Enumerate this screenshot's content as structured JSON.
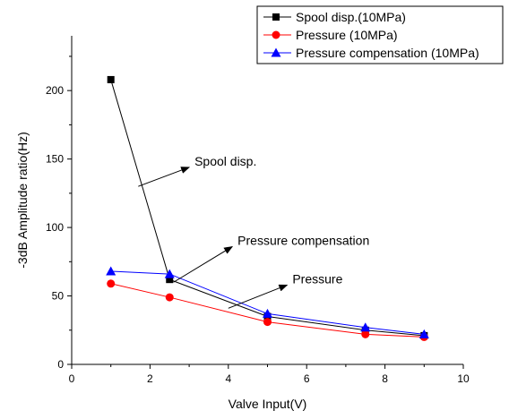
{
  "chart_data": {
    "type": "line",
    "title": "",
    "xlabel": "Valve Input(V)",
    "ylabel": "-3dB Amplitude ratio(Hz)",
    "xlim": [
      0,
      10
    ],
    "ylim": [
      0,
      240
    ],
    "x_ticks": [
      0,
      2,
      4,
      6,
      8,
      10
    ],
    "y_ticks": [
      0,
      50,
      100,
      150,
      200
    ],
    "grid": false,
    "legend_position": "top-right",
    "series": [
      {
        "name": "Spool disp.(10MPa)",
        "color": "#000000",
        "marker": "square",
        "x": [
          1,
          2.5,
          5,
          7.5,
          9
        ],
        "y": [
          208,
          62,
          35,
          25,
          21
        ]
      },
      {
        "name": "Pressure (10MPa)",
        "color": "#ff0000",
        "marker": "circle",
        "x": [
          1,
          2.5,
          5,
          7.5,
          9
        ],
        "y": [
          59,
          49,
          31,
          22,
          20
        ]
      },
      {
        "name": "Pressure compensation (10MPa)",
        "color": "#0000ff",
        "marker": "triangle",
        "x": [
          1,
          2.5,
          5,
          7.5,
          9
        ],
        "y": [
          68,
          66,
          37,
          27,
          22
        ]
      }
    ],
    "annotations": [
      {
        "text": "Spool disp.",
        "arrow_from": [
          1.7,
          130
        ],
        "arrow_to": [
          3.0,
          144
        ]
      },
      {
        "text": "Pressure compensation",
        "arrow_from": [
          2.6,
          60
        ],
        "arrow_to": [
          4.1,
          86
        ]
      },
      {
        "text": "Pressure",
        "arrow_from": [
          4.0,
          41
        ],
        "arrow_to": [
          5.5,
          58
        ]
      }
    ]
  }
}
